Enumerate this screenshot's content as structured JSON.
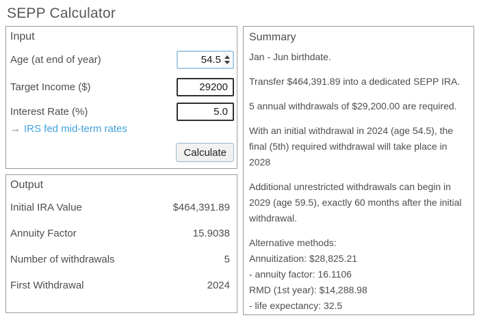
{
  "page": {
    "title": "SEPP Calculator"
  },
  "input_panel": {
    "title": "Input",
    "fields": [
      {
        "label": "Age (at end of year)",
        "value": "54.5",
        "type": "number-stepper"
      },
      {
        "label": "Target Income ($)",
        "value": "29200"
      },
      {
        "label": "Interest Rate (%)",
        "value": "5.0"
      }
    ],
    "link": {
      "arrow": "→",
      "label": "IRS fed mid-term rates"
    },
    "calculate_label": "Calculate"
  },
  "output_panel": {
    "title": "Output",
    "rows": [
      {
        "label": "Initial IRA Value",
        "value": "$464,391.89"
      },
      {
        "label": "Annuity Factor",
        "value": "15.9038"
      },
      {
        "label": "Number of withdrawals",
        "value": "5"
      },
      {
        "label": "First Withdrawal",
        "value": "2024"
      }
    ]
  },
  "summary_panel": {
    "title": "Summary",
    "paragraphs": [
      "Jan - Jun birthdate.",
      "Transfer $464,391.89 into a dedicated SEPP IRA.",
      "5 annual withdrawals of $29,200.00 are required.",
      "With an initial withdrawal in 2024 (age 54.5), the final (5th) required withdrawal will take place in 2028",
      "Additional unrestricted withdrawals can begin in 2029 (age 59.5), exactly 60 months after the initial withdrawal."
    ],
    "alt_methods_lines": [
      "Alternative methods:",
      "Annuitization: $28,825.21",
      "- annuity factor: 16.1106",
      "RMD (1st year): $14,288.98",
      "- life expectancy: 32.5"
    ]
  },
  "icons": {
    "spinner_up": "spinner-up-icon",
    "spinner_down": "spinner-down-icon",
    "link_arrow": "arrow-right-icon"
  },
  "colors": {
    "body_text": "#4d4d4d",
    "title_text": "#595959",
    "panel_border": "#999999",
    "input_border_dark": "#2e2e2e",
    "input_border_focus_blue": "#a9cbe4",
    "link_blue": "#41a0dd",
    "button_bg": "#f1f1f1",
    "button_border": "#9db8cc"
  }
}
